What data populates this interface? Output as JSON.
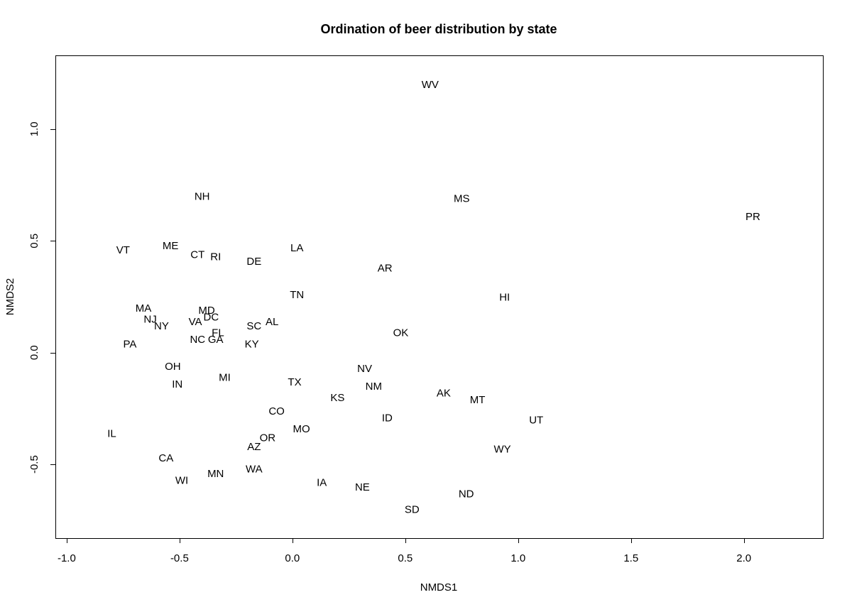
{
  "chart_data": {
    "type": "scatter",
    "title": "Ordination of beer distribution by state",
    "xlabel": "NMDS1",
    "ylabel": "NMDS2",
    "xlim": [
      -1.05,
      2.35
    ],
    "ylim": [
      -0.83,
      1.33
    ],
    "xticks": [
      -1.0,
      -0.5,
      0.0,
      0.5,
      1.0,
      1.5,
      2.0
    ],
    "xtick_labels": [
      "-1.0",
      "-0.5",
      "0.0",
      "0.5",
      "1.0",
      "1.5",
      "2.0"
    ],
    "yticks": [
      -0.5,
      0.0,
      0.5,
      1.0
    ],
    "ytick_labels": [
      "-0.5",
      "0.0",
      "0.5",
      "1.0"
    ],
    "grid": false,
    "legend": false,
    "points": [
      {
        "label": "WV",
        "x": 0.61,
        "y": 1.2
      },
      {
        "label": "NH",
        "x": -0.4,
        "y": 0.7
      },
      {
        "label": "MS",
        "x": 0.75,
        "y": 0.69
      },
      {
        "label": "PR",
        "x": 2.04,
        "y": 0.61
      },
      {
        "label": "VT",
        "x": -0.75,
        "y": 0.46
      },
      {
        "label": "ME",
        "x": -0.54,
        "y": 0.48
      },
      {
        "label": "CT",
        "x": -0.42,
        "y": 0.44
      },
      {
        "label": "RI",
        "x": -0.34,
        "y": 0.43
      },
      {
        "label": "DE",
        "x": -0.17,
        "y": 0.41
      },
      {
        "label": "LA",
        "x": 0.02,
        "y": 0.47
      },
      {
        "label": "AR",
        "x": 0.41,
        "y": 0.38
      },
      {
        "label": "TN",
        "x": 0.02,
        "y": 0.26
      },
      {
        "label": "HI",
        "x": 0.94,
        "y": 0.25
      },
      {
        "label": "MA",
        "x": -0.66,
        "y": 0.2
      },
      {
        "label": "MD",
        "x": -0.38,
        "y": 0.19
      },
      {
        "label": "NJ",
        "x": -0.63,
        "y": 0.15
      },
      {
        "label": "DC",
        "x": -0.36,
        "y": 0.16
      },
      {
        "label": "VA",
        "x": -0.43,
        "y": 0.14
      },
      {
        "label": "AL",
        "x": -0.09,
        "y": 0.14
      },
      {
        "label": "NY",
        "x": -0.58,
        "y": 0.12
      },
      {
        "label": "SC",
        "x": -0.17,
        "y": 0.12
      },
      {
        "label": "FL",
        "x": -0.33,
        "y": 0.09
      },
      {
        "label": "OK",
        "x": 0.48,
        "y": 0.09
      },
      {
        "label": "NC",
        "x": -0.42,
        "y": 0.06
      },
      {
        "label": "GA",
        "x": -0.34,
        "y": 0.06
      },
      {
        "label": "KY",
        "x": -0.18,
        "y": 0.04
      },
      {
        "label": "PA",
        "x": -0.72,
        "y": 0.04
      },
      {
        "label": "OH",
        "x": -0.53,
        "y": -0.06
      },
      {
        "label": "NV",
        "x": 0.32,
        "y": -0.07
      },
      {
        "label": "MI",
        "x": -0.3,
        "y": -0.11
      },
      {
        "label": "IN",
        "x": -0.51,
        "y": -0.14
      },
      {
        "label": "TX",
        "x": 0.01,
        "y": -0.13
      },
      {
        "label": "NM",
        "x": 0.36,
        "y": -0.15
      },
      {
        "label": "AK",
        "x": 0.67,
        "y": -0.18
      },
      {
        "label": "KS",
        "x": 0.2,
        "y": -0.2
      },
      {
        "label": "MT",
        "x": 0.82,
        "y": -0.21
      },
      {
        "label": "CO",
        "x": -0.07,
        "y": -0.26
      },
      {
        "label": "ID",
        "x": 0.42,
        "y": -0.29
      },
      {
        "label": "UT",
        "x": 1.08,
        "y": -0.3
      },
      {
        "label": "MO",
        "x": 0.04,
        "y": -0.34
      },
      {
        "label": "IL",
        "x": -0.8,
        "y": -0.36
      },
      {
        "label": "OR",
        "x": -0.11,
        "y": -0.38
      },
      {
        "label": "AZ",
        "x": -0.17,
        "y": -0.42
      },
      {
        "label": "WY",
        "x": 0.93,
        "y": -0.43
      },
      {
        "label": "CA",
        "x": -0.56,
        "y": -0.47
      },
      {
        "label": "WA",
        "x": -0.17,
        "y": -0.52
      },
      {
        "label": "MN",
        "x": -0.34,
        "y": -0.54
      },
      {
        "label": "WI",
        "x": -0.49,
        "y": -0.57
      },
      {
        "label": "IA",
        "x": 0.13,
        "y": -0.58
      },
      {
        "label": "NE",
        "x": 0.31,
        "y": -0.6
      },
      {
        "label": "ND",
        "x": 0.77,
        "y": -0.63
      },
      {
        "label": "SD",
        "x": 0.53,
        "y": -0.7
      }
    ]
  }
}
